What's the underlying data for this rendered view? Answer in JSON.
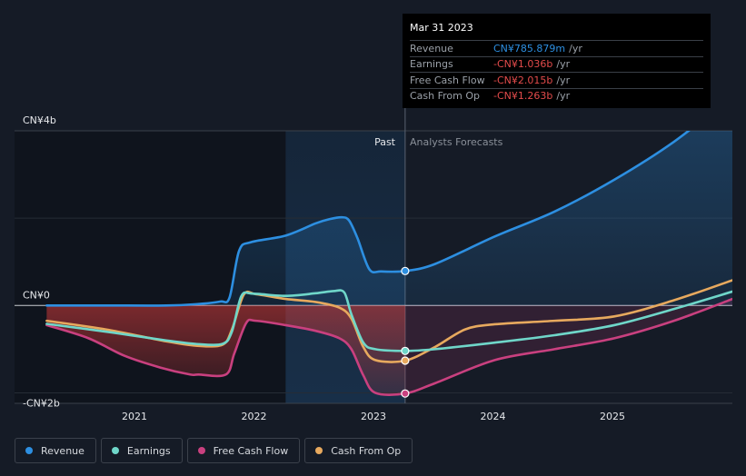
{
  "chart_data": {
    "type": "line",
    "y_tick_labels": [
      "CN¥4b",
      "CN¥0",
      "-CN¥2b"
    ],
    "x_tick_labels": [
      "2021",
      "2022",
      "2023",
      "2024",
      "2025"
    ],
    "ylim": [
      -2.5,
      4.0
    ],
    "xlim": [
      2020.25,
      2025.99
    ],
    "divider_x": 2023.25,
    "past_label": "Past",
    "forecast_label": "Analysts Forecasts",
    "highlight_start": 2022.25,
    "colors": {
      "revenue": "#2d8fe1",
      "earnings": "#6fd6c9",
      "fcf": "#c9407f",
      "cfo": "#e7a95e"
    },
    "series": [
      {
        "name": "Revenue",
        "key": "revenue",
        "points": [
          [
            2020.25,
            0.0
          ],
          [
            2020.75,
            0.0
          ],
          [
            2021.25,
            0.0
          ],
          [
            2021.5,
            0.03
          ],
          [
            2021.7,
            0.09
          ],
          [
            2021.78,
            0.18
          ],
          [
            2021.86,
            1.25
          ],
          [
            2021.96,
            1.45
          ],
          [
            2022.25,
            1.6
          ],
          [
            2022.5,
            1.88
          ],
          [
            2022.62,
            1.98
          ],
          [
            2022.72,
            2.02
          ],
          [
            2022.78,
            1.95
          ],
          [
            2022.85,
            1.55
          ],
          [
            2022.95,
            0.83
          ],
          [
            2023.05,
            0.78
          ],
          [
            2023.25,
            0.79
          ],
          [
            2023.5,
            0.95
          ],
          [
            2024.0,
            1.58
          ],
          [
            2024.5,
            2.15
          ],
          [
            2025.0,
            2.88
          ],
          [
            2025.5,
            3.75
          ],
          [
            2025.99,
            4.8
          ]
        ],
        "dots_at": [
          2023.25
        ]
      },
      {
        "name": "Earnings",
        "key": "earnings",
        "points": [
          [
            2020.25,
            -0.42
          ],
          [
            2020.75,
            -0.6
          ],
          [
            2021.25,
            -0.8
          ],
          [
            2021.5,
            -0.88
          ],
          [
            2021.72,
            -0.88
          ],
          [
            2021.8,
            -0.6
          ],
          [
            2021.88,
            0.22
          ],
          [
            2021.98,
            0.27
          ],
          [
            2022.25,
            0.22
          ],
          [
            2022.5,
            0.28
          ],
          [
            2022.65,
            0.33
          ],
          [
            2022.74,
            0.3
          ],
          [
            2022.8,
            -0.2
          ],
          [
            2022.9,
            -0.85
          ],
          [
            2023.0,
            -1.0
          ],
          [
            2023.25,
            -1.04
          ],
          [
            2023.5,
            -1.0
          ],
          [
            2024.0,
            -0.85
          ],
          [
            2024.5,
            -0.68
          ],
          [
            2025.0,
            -0.45
          ],
          [
            2025.5,
            -0.08
          ],
          [
            2025.99,
            0.32
          ]
        ],
        "dots_at": [
          2023.25
        ]
      },
      {
        "name": "Free Cash Flow",
        "key": "fcf",
        "points": [
          [
            2020.25,
            -0.45
          ],
          [
            2020.6,
            -0.75
          ],
          [
            2020.9,
            -1.15
          ],
          [
            2021.2,
            -1.42
          ],
          [
            2021.45,
            -1.58
          ],
          [
            2021.52,
            -1.58
          ],
          [
            2021.75,
            -1.58
          ],
          [
            2021.82,
            -1.1
          ],
          [
            2021.92,
            -0.4
          ],
          [
            2022.0,
            -0.35
          ],
          [
            2022.25,
            -0.45
          ],
          [
            2022.5,
            -0.58
          ],
          [
            2022.7,
            -0.75
          ],
          [
            2022.8,
            -1.0
          ],
          [
            2022.9,
            -1.6
          ],
          [
            2023.0,
            -2.0
          ],
          [
            2023.25,
            -2.015
          ],
          [
            2023.5,
            -1.78
          ],
          [
            2024.0,
            -1.25
          ],
          [
            2024.5,
            -1.0
          ],
          [
            2025.0,
            -0.75
          ],
          [
            2025.5,
            -0.35
          ],
          [
            2025.99,
            0.15
          ]
        ],
        "dots_at": [
          2023.25
        ]
      },
      {
        "name": "Cash From Op",
        "key": "cfo",
        "points": [
          [
            2020.25,
            -0.35
          ],
          [
            2020.75,
            -0.55
          ],
          [
            2021.25,
            -0.82
          ],
          [
            2021.5,
            -0.92
          ],
          [
            2021.72,
            -0.9
          ],
          [
            2021.8,
            -0.55
          ],
          [
            2021.9,
            0.25
          ],
          [
            2022.0,
            0.26
          ],
          [
            2022.25,
            0.15
          ],
          [
            2022.5,
            0.08
          ],
          [
            2022.7,
            -0.05
          ],
          [
            2022.8,
            -0.3
          ],
          [
            2022.9,
            -0.95
          ],
          [
            2023.0,
            -1.25
          ],
          [
            2023.25,
            -1.263
          ],
          [
            2023.5,
            -0.95
          ],
          [
            2023.75,
            -0.55
          ],
          [
            2024.0,
            -0.43
          ],
          [
            2024.5,
            -0.35
          ],
          [
            2025.0,
            -0.25
          ],
          [
            2025.5,
            0.12
          ],
          [
            2025.99,
            0.58
          ]
        ],
        "dots_at": [
          2023.25
        ]
      }
    ]
  },
  "tooltip": {
    "date": "Mar 31 2023",
    "rows": [
      {
        "label": "Revenue",
        "value": "CN¥785.879m",
        "unit": "/yr",
        "color": "#2d8fe1"
      },
      {
        "label": "Earnings",
        "value": "-CN¥1.036b",
        "unit": "/yr",
        "color": "#e34b4b"
      },
      {
        "label": "Free Cash Flow",
        "value": "-CN¥2.015b",
        "unit": "/yr",
        "color": "#e34b4b"
      },
      {
        "label": "Cash From Op",
        "value": "-CN¥1.263b",
        "unit": "/yr",
        "color": "#e34b4b"
      }
    ]
  },
  "legend": [
    {
      "label": "Revenue",
      "color": "#2d8fe1"
    },
    {
      "label": "Earnings",
      "color": "#6fd6c9"
    },
    {
      "label": "Free Cash Flow",
      "color": "#c9407f"
    },
    {
      "label": "Cash From Op",
      "color": "#e7a95e"
    }
  ]
}
